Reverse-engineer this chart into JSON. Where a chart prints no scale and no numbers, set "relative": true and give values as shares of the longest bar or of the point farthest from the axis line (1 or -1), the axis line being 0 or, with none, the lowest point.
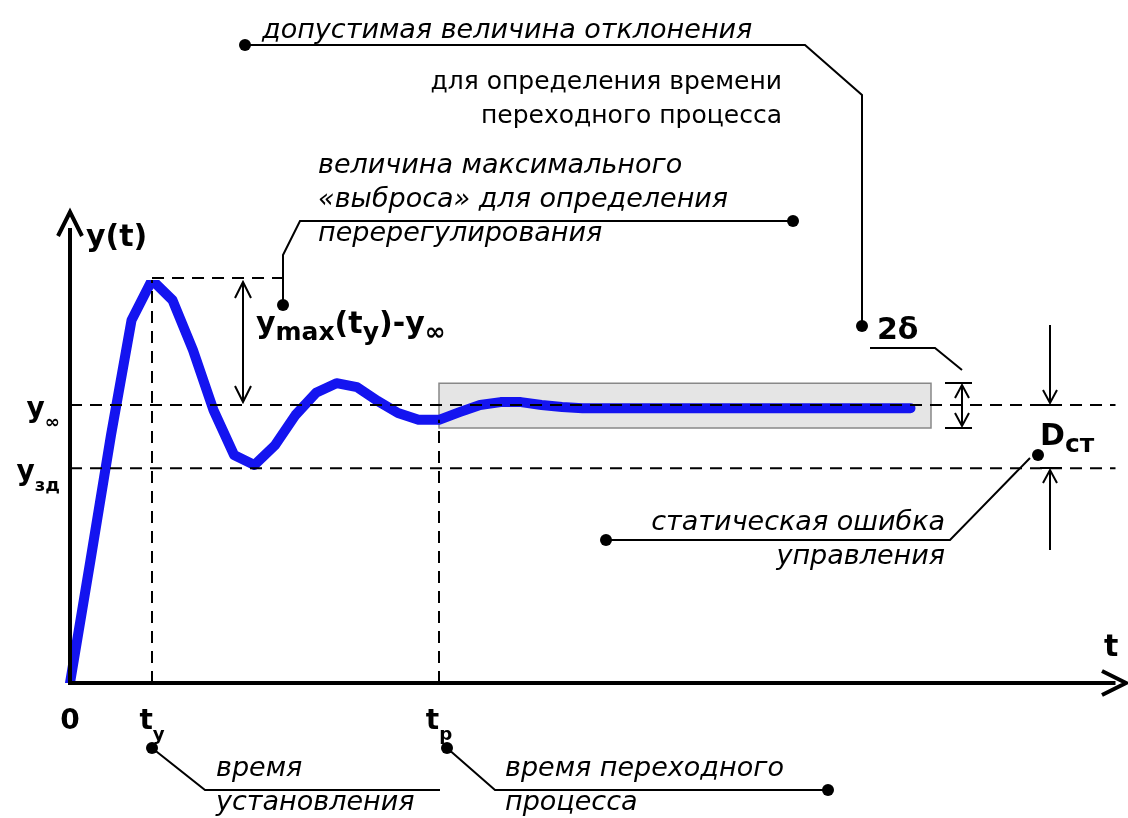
{
  "chart_data": {
    "type": "line",
    "relative": true,
    "xlabel": "t",
    "ylabel": "y(t)",
    "categories": [
      "0",
      null,
      null,
      null,
      "t$_{у}$",
      null,
      null,
      null,
      null,
      null,
      null,
      null,
      null,
      null,
      null,
      null,
      null,
      null,
      "t$_{р}$",
      null,
      null,
      null,
      null,
      null,
      null,
      null,
      null,
      null,
      null,
      null,
      null,
      null,
      null,
      null,
      null,
      null,
      null,
      null,
      null,
      null,
      null,
      null,
      null,
      null,
      null,
      null,
      null,
      null,
      null,
      null,
      null,
      null
    ],
    "series": [
      {
        "color": "#1414f0",
        "values": [
          0,
          0.305,
          0.615,
          0.9,
          1.0,
          0.95,
          0.826,
          0.677,
          0.566,
          0.541,
          0.59,
          0.665,
          0.72,
          0.744,
          0.734,
          0.7,
          0.67,
          0.653,
          0.653,
          0.672,
          0.69,
          0.697,
          0.697,
          0.69,
          0.685,
          0.682,
          0.682,
          0.682,
          0.682,
          0.682,
          0.682,
          0.682,
          0.682,
          0.682,
          0.682,
          0.682,
          0.682,
          0.682,
          0.682,
          0.682,
          0.682,
          0.682,
          null,
          null,
          null,
          null,
          null,
          null,
          null,
          null,
          null,
          null
        ]
      }
    ],
    "ref_lines": [
      {
        "axis": "y",
        "value": 0.69,
        "label": "y$_{∞}$",
        "line_style": "dashed"
      },
      {
        "axis": "y",
        "value": 0.533,
        "label": "y$_{зд}$",
        "line_style": "dashed"
      },
      {
        "axis": "x",
        "value": "t$_{у}$",
        "line_style": "dashed"
      },
      {
        "axis": "x",
        "value": "t$_{р}$",
        "line_style": "dashed"
      }
    ],
    "bands": [
      {
        "axis": "y",
        "from": 0.633,
        "to": 0.744,
        "color": "#d0d0d0"
      }
    ],
    "annotations": [
      "допустимая величина отклонения",
      "для определения времени переходного процесса",
      "величина максимального «выброса» для определения перерегулирования",
      "y$_{max}$(t$_{у}$)-y$_{∞}$",
      "D$_{ст}$",
      "статическая ошибка управления",
      "время установления",
      "время переходного процесса",
      "2δ"
    ]
  }
}
